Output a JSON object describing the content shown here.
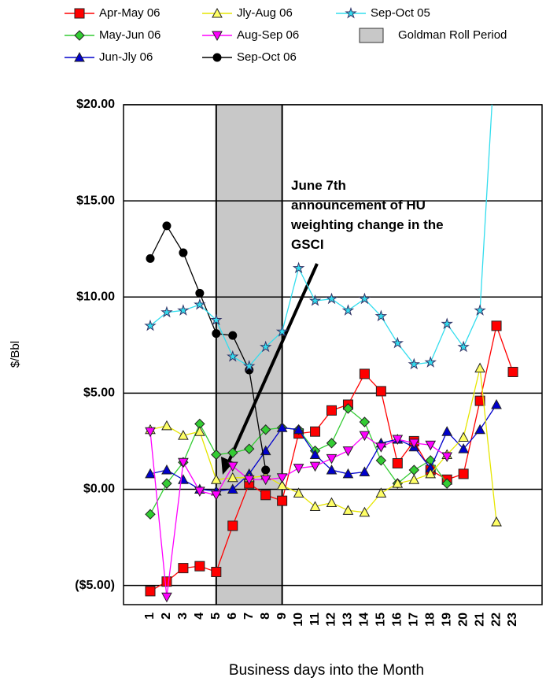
{
  "chart_data": {
    "type": "line",
    "y_label": "$/Bbl",
    "x_label": "Business days into the Month",
    "annotation": "June 7th announcement of HU weighting change in the GSCI",
    "categories": [
      "1",
      "2",
      "3",
      "4",
      "5",
      "6",
      "7",
      "8",
      "9",
      "10",
      "11",
      "12",
      "13",
      "14",
      "15",
      "16",
      "17",
      "18",
      "19",
      "20",
      "21",
      "22",
      "23"
    ],
    "ylim": [
      -6,
      20
    ],
    "yticks": [
      {
        "value": 20,
        "label": "$20.00"
      },
      {
        "value": 15,
        "label": "$15.00"
      },
      {
        "value": 10,
        "label": "$10.00"
      },
      {
        "value": 5,
        "label": "$5.00"
      },
      {
        "value": 0,
        "label": "$0.00"
      },
      {
        "value": -5,
        "label": "($5.00)"
      }
    ],
    "grid": true,
    "roll_period": {
      "name": "Goldman Roll Period",
      "start": 5,
      "end": 9,
      "color": "#c8c8c8"
    },
    "series": [
      {
        "name": "Apr-May 06",
        "color": "#ff0000",
        "marker": "square",
        "values": [
          -5.3,
          -4.8,
          -4.1,
          -4.0,
          -4.3,
          -1.9,
          0.3,
          -0.3,
          -0.6,
          2.9,
          3.0,
          4.1,
          4.4,
          6.0,
          5.1,
          1.35,
          2.5,
          1.0,
          0.5,
          0.8,
          4.6,
          8.5,
          6.1
        ]
      },
      {
        "name": "May-Jun 06",
        "color": "#33cc33",
        "marker": "diamond",
        "values": [
          -1.3,
          0.3,
          1.4,
          3.4,
          1.8,
          1.9,
          2.1,
          3.1,
          3.2,
          3.1,
          2.0,
          2.4,
          4.2,
          3.5,
          1.5,
          0.3,
          1.0,
          1.5,
          0.3,
          null,
          null,
          null,
          null
        ]
      },
      {
        "name": "Jun-Jly 06",
        "color": "#0000cc",
        "marker": "triangle",
        "values": [
          0.8,
          1.0,
          0.5,
          0.0,
          -0.1,
          0.0,
          0.8,
          2.0,
          3.2,
          3.1,
          1.8,
          1.0,
          0.8,
          0.9,
          2.4,
          2.6,
          2.2,
          1.1,
          3.0,
          2.1,
          3.1,
          4.4,
          null
        ]
      },
      {
        "name": "Jly-Aug 06",
        "color": "#ffff66",
        "marker": "triangle",
        "values": [
          3.1,
          3.3,
          2.8,
          3.0,
          0.5,
          0.6,
          0.6,
          0.7,
          0.2,
          -0.2,
          -0.9,
          -0.7,
          -1.1,
          -1.2,
          -0.2,
          0.3,
          0.5,
          0.8,
          1.8,
          2.7,
          6.3,
          -1.7,
          null
        ]
      },
      {
        "name": "Aug-Sep 06",
        "color": "#ff00ff",
        "marker": "itriangle",
        "values": [
          3.0,
          -5.6,
          1.4,
          -0.1,
          -0.3,
          1.2,
          0.5,
          0.5,
          0.6,
          1.1,
          1.2,
          1.6,
          2.0,
          2.8,
          2.2,
          2.6,
          2.4,
          2.3,
          1.7,
          null,
          null,
          null,
          null
        ]
      },
      {
        "name": "Sep-Oct 06",
        "color": "#000000",
        "marker": "circle",
        "values": [
          12.0,
          13.7,
          12.3,
          10.2,
          8.1,
          8.0,
          6.2,
          1.0,
          null,
          null,
          null,
          null,
          null,
          null,
          null,
          null,
          null,
          null,
          null,
          null,
          null,
          null,
          null
        ]
      },
      {
        "name": "Sep-Oct 05",
        "color": "#33ddee",
        "marker": "star",
        "values": [
          8.5,
          9.2,
          9.3,
          9.6,
          8.8,
          6.9,
          6.4,
          7.4,
          8.2,
          11.5,
          9.8,
          9.9,
          9.3,
          9.9,
          9.0,
          7.6,
          6.5,
          6.6,
          8.6,
          7.4,
          9.3,
          24,
          null
        ]
      }
    ]
  }
}
